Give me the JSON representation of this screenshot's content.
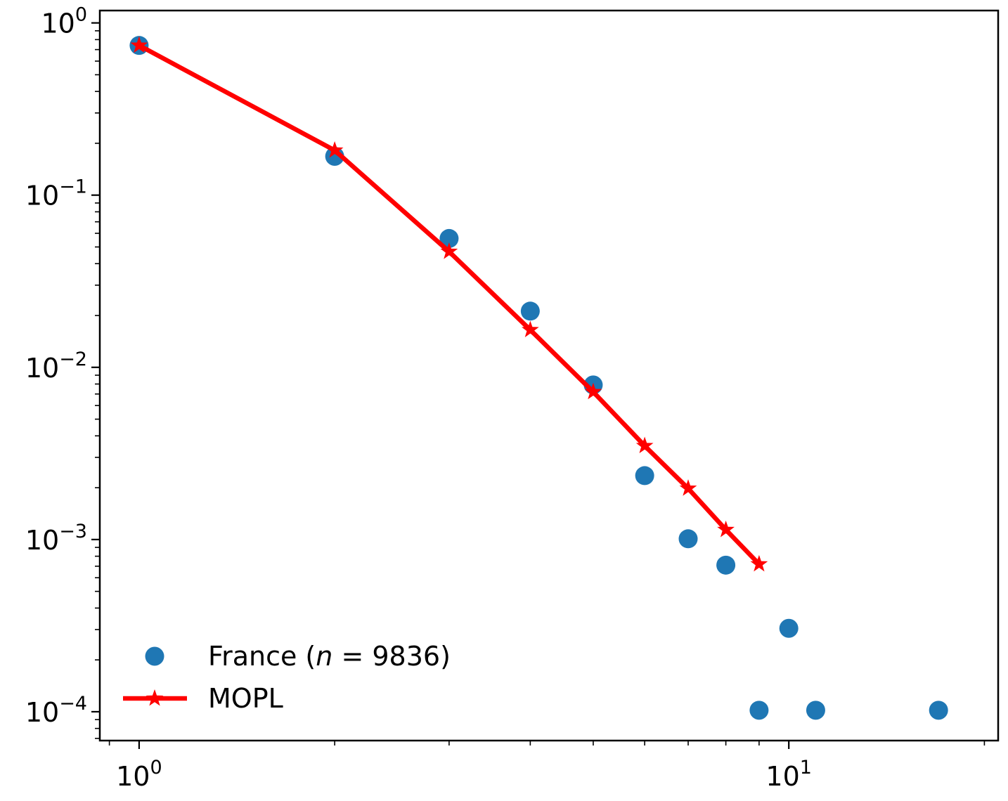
{
  "chart_data": {
    "type": "scatter",
    "title": "",
    "xlabel": "",
    "ylabel": "",
    "xscale": "log",
    "yscale": "log",
    "xlim": [
      0.87,
      21
    ],
    "ylim": [
      6.8e-05,
      1.18
    ],
    "grid": false,
    "legend_position": "lower-left",
    "x_ticks": [
      {
        "base": "10",
        "exp": "0",
        "value": 1
      },
      {
        "base": "10",
        "exp": "1",
        "value": 10
      }
    ],
    "y_ticks": [
      {
        "base": "10",
        "exp": "0",
        "value": 1
      },
      {
        "base": "10",
        "exp": "−1",
        "value": 0.1
      },
      {
        "base": "10",
        "exp": "−2",
        "value": 0.01
      },
      {
        "base": "10",
        "exp": "−3",
        "value": 0.001
      },
      {
        "base": "10",
        "exp": "−4",
        "value": 0.0001
      }
    ],
    "series": [
      {
        "name": "France ($n = 9836$)",
        "legend_label_parts": {
          "prefix": "France (",
          "italic": "n",
          "suffix": " = 9836)"
        },
        "kind": "scatter",
        "color": "#1f77b4",
        "points": [
          {
            "x": 1,
            "y": 0.74
          },
          {
            "x": 2,
            "y": 0.168
          },
          {
            "x": 3,
            "y": 0.056
          },
          {
            "x": 4,
            "y": 0.0212
          },
          {
            "x": 5,
            "y": 0.0079
          },
          {
            "x": 6,
            "y": 0.00235
          },
          {
            "x": 7,
            "y": 0.00101
          },
          {
            "x": 8,
            "y": 0.00071
          },
          {
            "x": 10,
            "y": 0.000305
          },
          {
            "x": 9,
            "y": 0.000102
          },
          {
            "x": 11,
            "y": 0.000102
          },
          {
            "x": 17,
            "y": 0.000102
          }
        ]
      },
      {
        "name": "MOPL",
        "kind": "line",
        "marker": "star",
        "color": "#ff0000",
        "points": [
          {
            "x": 1,
            "y": 0.74
          },
          {
            "x": 2,
            "y": 0.182
          },
          {
            "x": 3,
            "y": 0.047
          },
          {
            "x": 4,
            "y": 0.0165
          },
          {
            "x": 5,
            "y": 0.0072
          },
          {
            "x": 6,
            "y": 0.0035
          },
          {
            "x": 7,
            "y": 0.00198
          },
          {
            "x": 8,
            "y": 0.00114
          },
          {
            "x": 9,
            "y": 0.00072
          }
        ]
      }
    ]
  }
}
